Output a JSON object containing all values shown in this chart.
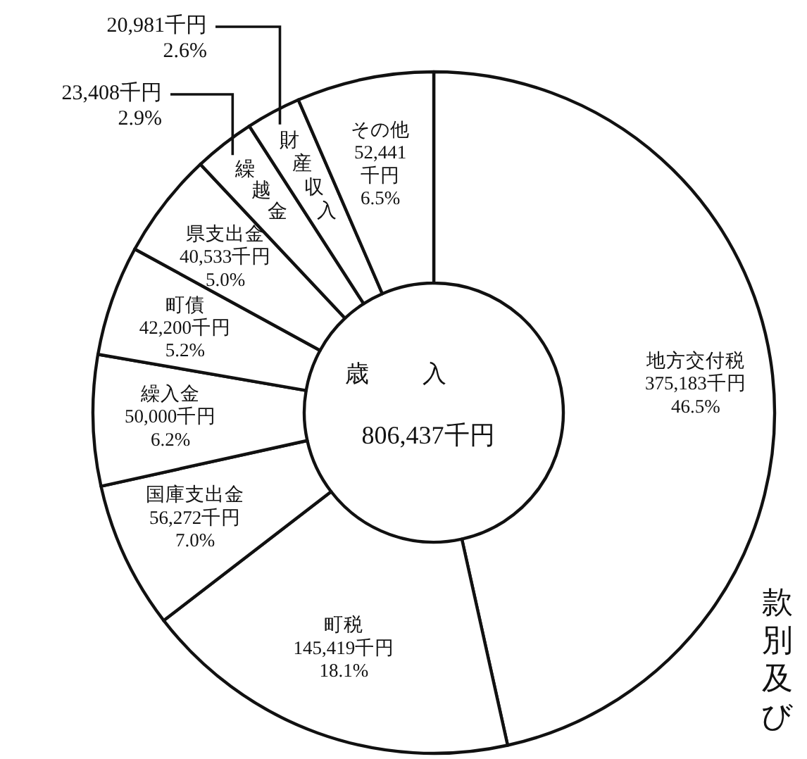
{
  "chart_data": {
    "type": "donut",
    "title": "歳入",
    "subtitle": "806,437千円",
    "categories": [
      "地方交付税",
      "町税",
      "国庫支出金",
      "繰入金",
      "町債",
      "県支出金",
      "繰越金",
      "財産収入",
      "その他"
    ],
    "values": [
      375183,
      145419,
      56272,
      50000,
      42200,
      40533,
      23408,
      20981,
      52441
    ],
    "value_labels": [
      "375,183千円\n46.5%",
      "145,419千円\n18.1%",
      "56,272千円\n7.0%",
      "50,000千円\n6.2%",
      "42,200千円\n5.2%",
      "40,533千円\n5.0%",
      "23,408千円\n2.9%",
      "20,981千円\n2.6%",
      "52,441\n千円\n6.5%"
    ],
    "colors": [
      "#ffffff",
      "#ffffff",
      "#ffffff",
      "#ffffff",
      "#ffffff",
      "#ffffff",
      "#ffffff",
      "#ffffff",
      "#ffffff"
    ],
    "annotations": [
      "款別及び"
    ]
  }
}
